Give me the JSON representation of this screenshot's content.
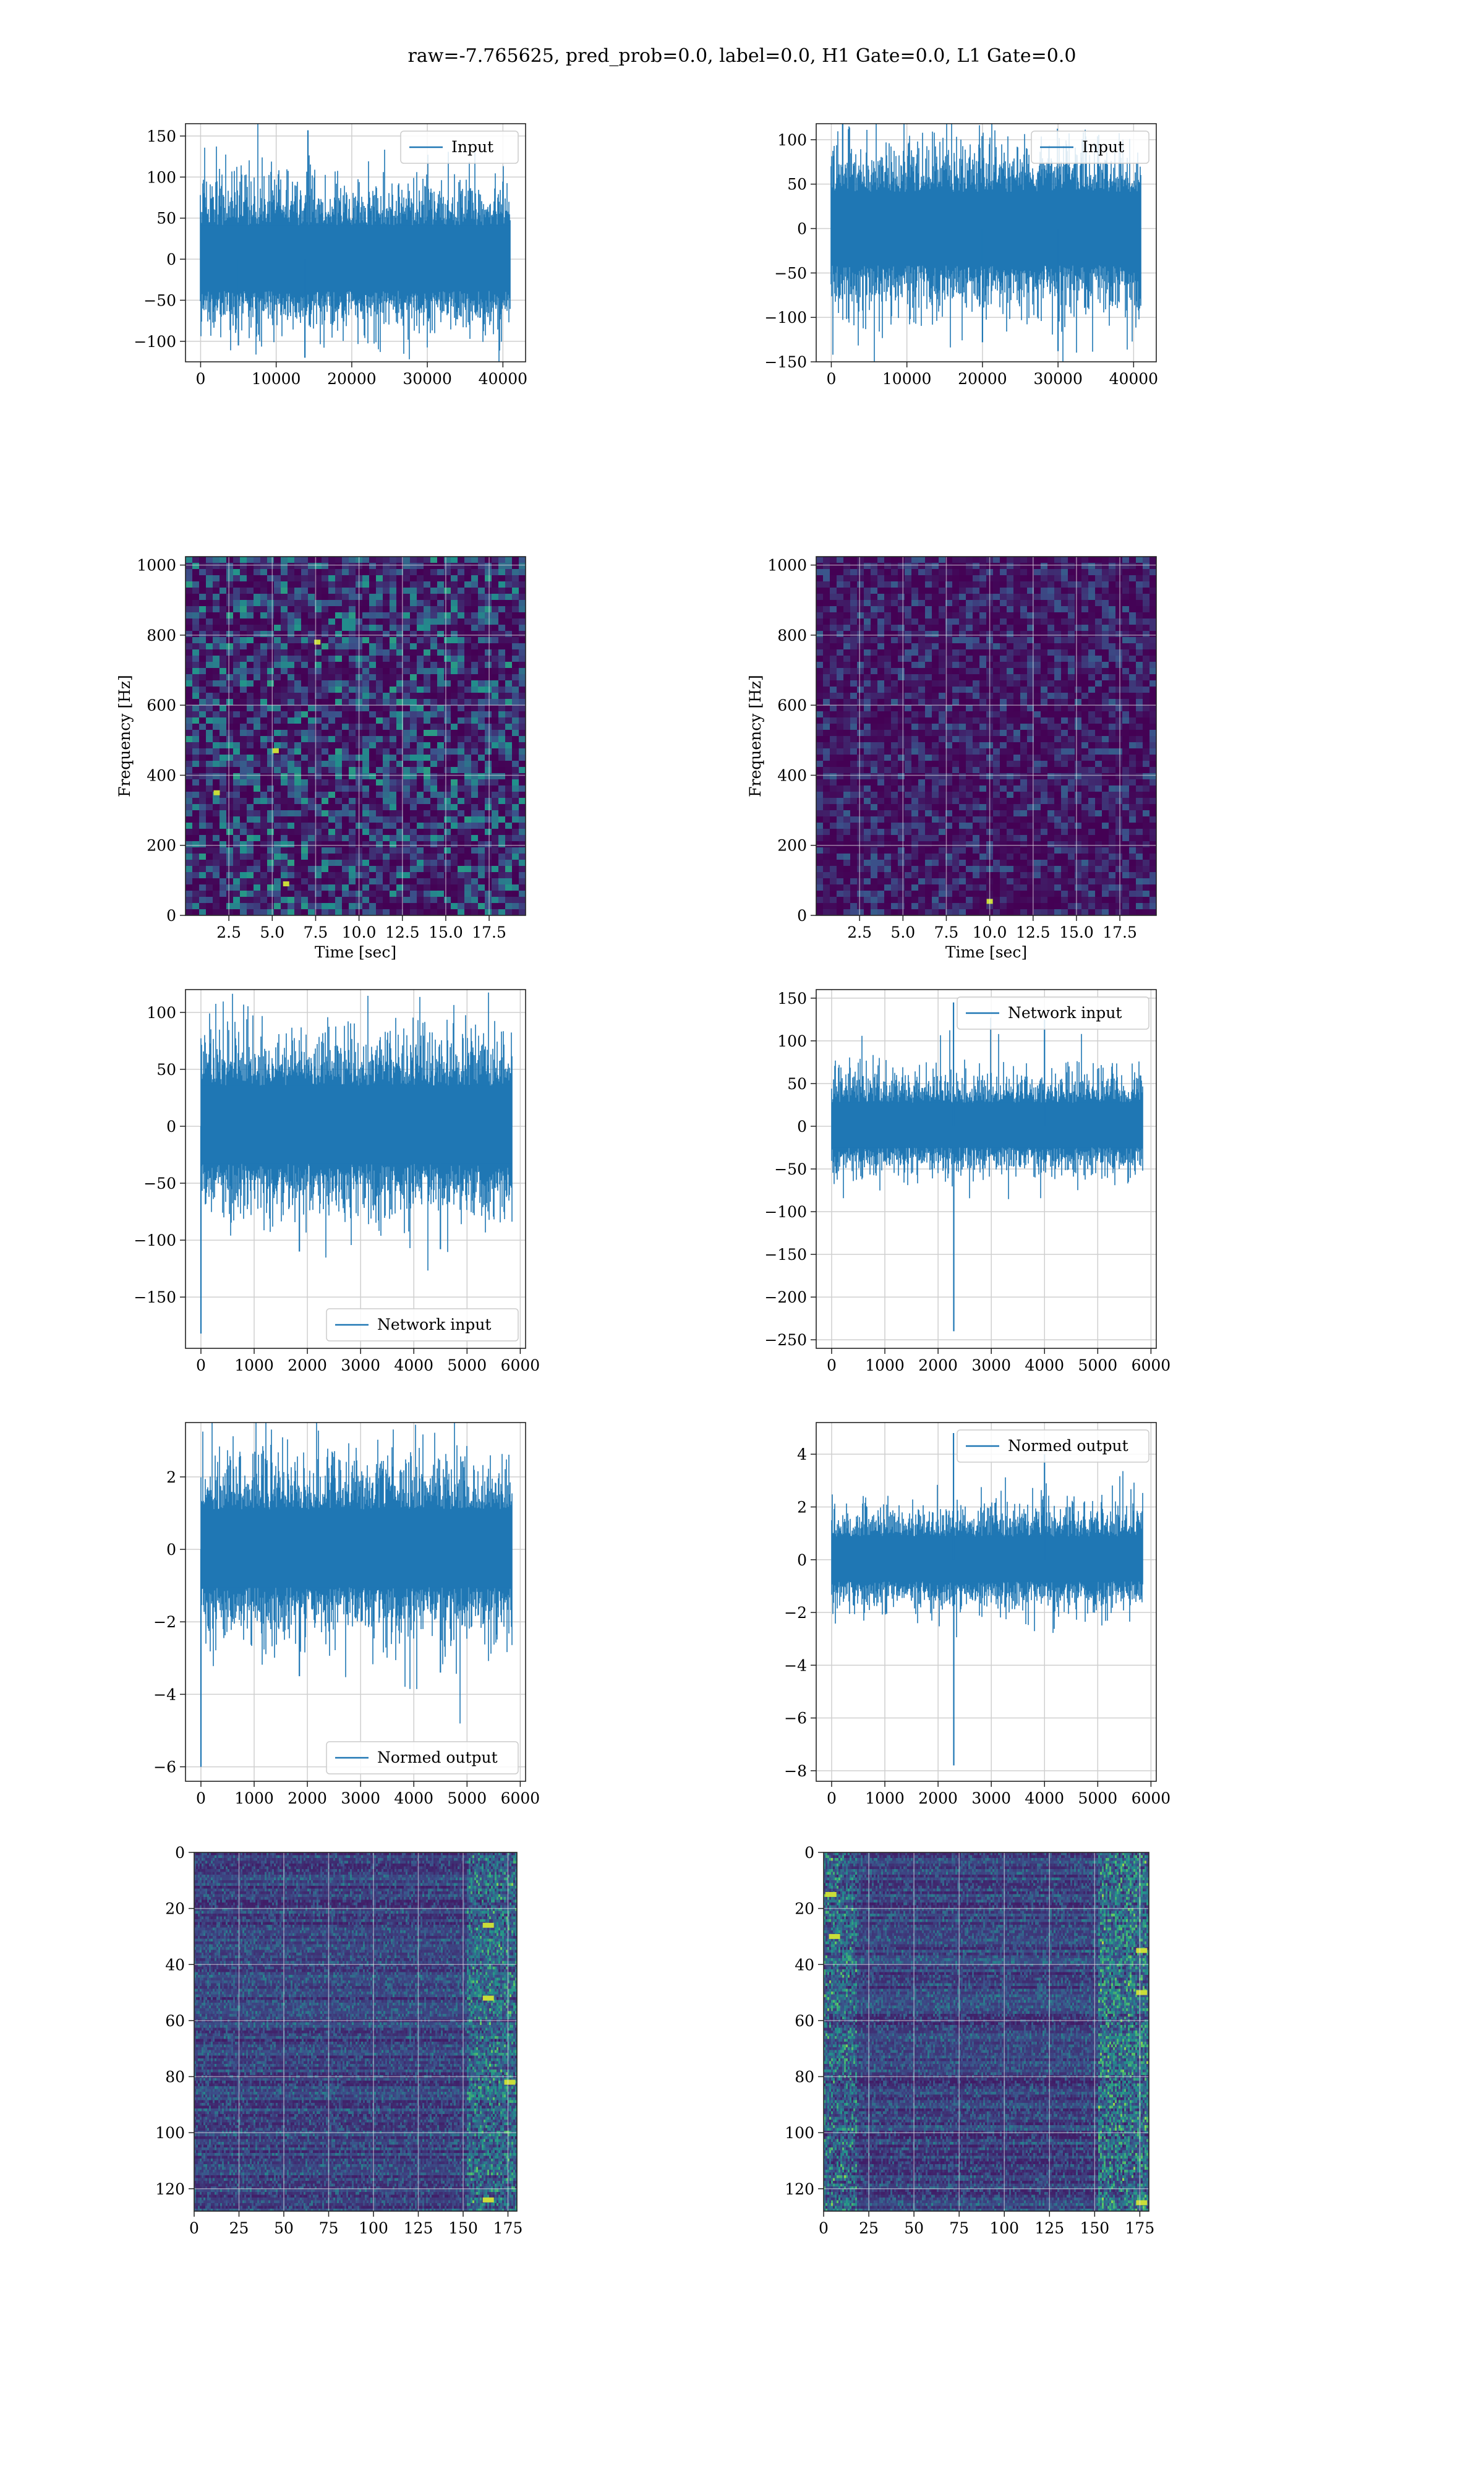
{
  "figure": {
    "suptitle": "raw=-7.765625, pred_prob=0.0, label=0.0, H1 Gate=0.0, L1 Gate=0.0"
  },
  "colors": {
    "series": "#1f77b4",
    "grid": "#cfcfcf",
    "viridis_dark": "#440154",
    "viridis_mid": "#3b528b",
    "viridis_teal": "#21918c",
    "viridis_green": "#5ec962",
    "viridis_yellow": "#fde725"
  },
  "chart_data": [
    {
      "id": "r0c0",
      "type": "line",
      "legend": "Input",
      "legend_loc": "upper right",
      "xlim": [
        -2000,
        43000
      ],
      "ylim": [
        -125,
        165
      ],
      "xticks": [
        0,
        10000,
        20000,
        30000,
        40000
      ],
      "yticks": [
        -100,
        -50,
        0,
        50,
        100,
        150
      ],
      "n": 40960,
      "band": [
        -70,
        75
      ],
      "extremes": [
        [
          14200,
          157
        ],
        [
          13800,
          -120
        ],
        [
          5000,
          -105
        ]
      ],
      "xlabel": "",
      "ylabel": ""
    },
    {
      "id": "r0c1",
      "type": "line",
      "legend": "Input",
      "legend_loc": "upper right",
      "xlim": [
        -2000,
        43000
      ],
      "ylim": [
        -150,
        118
      ],
      "xticks": [
        0,
        10000,
        20000,
        30000,
        40000
      ],
      "yticks": [
        -150,
        -100,
        -50,
        0,
        50,
        100
      ],
      "n": 40960,
      "band": [
        -75,
        75
      ],
      "extremes": [
        [
          1500,
          122
        ],
        [
          30000,
          -138
        ],
        [
          20000,
          -128
        ]
      ],
      "xlabel": "",
      "ylabel": ""
    },
    {
      "id": "r1c0",
      "type": "heatmap",
      "xlabel": "Time [sec]",
      "ylabel": "Frequency [Hz]",
      "xlim": [
        0,
        19.6
      ],
      "ylim": [
        0,
        1024
      ],
      "xticks": [
        2.5,
        5.0,
        7.5,
        10.0,
        12.5,
        15.0,
        17.5
      ],
      "yticks": [
        0,
        200,
        400,
        600,
        800,
        1000
      ],
      "brightness": 0.55,
      "hot_spots": [
        [
          5.8,
          90
        ],
        [
          5.2,
          470
        ],
        [
          1.8,
          350
        ],
        [
          7.6,
          780
        ]
      ]
    },
    {
      "id": "r1c1",
      "type": "heatmap",
      "xlabel": "Time [sec]",
      "ylabel": "Frequency [Hz]",
      "xlim": [
        0,
        19.6
      ],
      "ylim": [
        0,
        1024
      ],
      "xticks": [
        2.5,
        5.0,
        7.5,
        10.0,
        12.5,
        15.0,
        17.5
      ],
      "yticks": [
        0,
        200,
        400,
        600,
        800,
        1000
      ],
      "brightness": 0.3,
      "hot_spots": [
        [
          10.0,
          40
        ]
      ]
    },
    {
      "id": "r2c0",
      "type": "line",
      "legend": "Network input",
      "legend_loc": "lower right",
      "xlim": [
        -290,
        6100
      ],
      "ylim": [
        -195,
        120
      ],
      "xticks": [
        0,
        1000,
        2000,
        3000,
        4000,
        5000,
        6000
      ],
      "yticks": [
        -150,
        -100,
        -50,
        0,
        50,
        100
      ],
      "n": 5850,
      "band": [
        -60,
        65
      ],
      "extremes": [
        [
          0,
          -182
        ],
        [
          1850,
          -110
        ],
        [
          4500,
          -108
        ]
      ],
      "xlabel": "",
      "ylabel": ""
    },
    {
      "id": "r2c1",
      "type": "line",
      "legend": "Network input",
      "legend_loc": "upper right",
      "xlim": [
        -290,
        6100
      ],
      "ylim": [
        -260,
        160
      ],
      "xticks": [
        0,
        1000,
        2000,
        3000,
        4000,
        5000,
        6000
      ],
      "yticks": [
        -250,
        -200,
        -150,
        -100,
        -50,
        0,
        50,
        100,
        150
      ],
      "n": 5850,
      "band": [
        -45,
        50
      ],
      "extremes": [
        [
          2290,
          145
        ],
        [
          2295,
          -240
        ],
        [
          4000,
          125
        ]
      ],
      "xlabel": "",
      "ylabel": ""
    },
    {
      "id": "r3c0",
      "type": "line",
      "legend": "Normed output",
      "legend_loc": "lower right",
      "xlim": [
        -290,
        6100
      ],
      "ylim": [
        -6.4,
        3.5
      ],
      "xticks": [
        0,
        1000,
        2000,
        3000,
        4000,
        5000,
        6000
      ],
      "yticks": [
        -6,
        -4,
        -2,
        0,
        2
      ],
      "n": 5850,
      "band": [
        -1.9,
        2.0
      ],
      "extremes": [
        [
          0,
          -6.0
        ],
        [
          1850,
          -3.5
        ],
        [
          4500,
          -3.4
        ]
      ],
      "xlabel": "",
      "ylabel": ""
    },
    {
      "id": "r3c1",
      "type": "line",
      "legend": "Normed output",
      "legend_loc": "upper right",
      "xlim": [
        -290,
        6100
      ],
      "ylim": [
        -8.4,
        5.2
      ],
      "xticks": [
        0,
        1000,
        2000,
        3000,
        4000,
        5000,
        6000
      ],
      "yticks": [
        -8,
        -6,
        -4,
        -2,
        0,
        2,
        4
      ],
      "n": 5850,
      "band": [
        -1.5,
        1.6
      ],
      "extremes": [
        [
          2290,
          4.8
        ],
        [
          2295,
          -7.8
        ],
        [
          4000,
          4.0
        ]
      ],
      "xlabel": "",
      "ylabel": ""
    },
    {
      "id": "r4c0",
      "type": "heatmap",
      "xlabel": "",
      "ylabel": "",
      "xlim": [
        0,
        180
      ],
      "ylim": [
        128,
        0
      ],
      "xticks": [
        0,
        25,
        50,
        75,
        100,
        125,
        150,
        175
      ],
      "yticks": [
        0,
        20,
        40,
        60,
        80,
        100,
        120
      ],
      "brightness": 0.35,
      "hot_spots": [
        [
          163,
          26
        ],
        [
          163,
          52
        ],
        [
          163,
          124
        ],
        [
          175,
          82
        ]
      ]
    },
    {
      "id": "r4c1",
      "type": "heatmap",
      "xlabel": "",
      "ylabel": "",
      "xlim": [
        0,
        180
      ],
      "ylim": [
        128,
        0
      ],
      "xticks": [
        0,
        25,
        50,
        75,
        100,
        125,
        150,
        175
      ],
      "yticks": [
        0,
        20,
        40,
        60,
        80,
        100,
        120
      ],
      "brightness": 0.45,
      "hot_spots": [
        [
          5,
          30
        ],
        [
          175,
          50
        ],
        [
          175,
          35
        ],
        [
          175,
          125
        ],
        [
          3,
          15
        ]
      ]
    }
  ]
}
